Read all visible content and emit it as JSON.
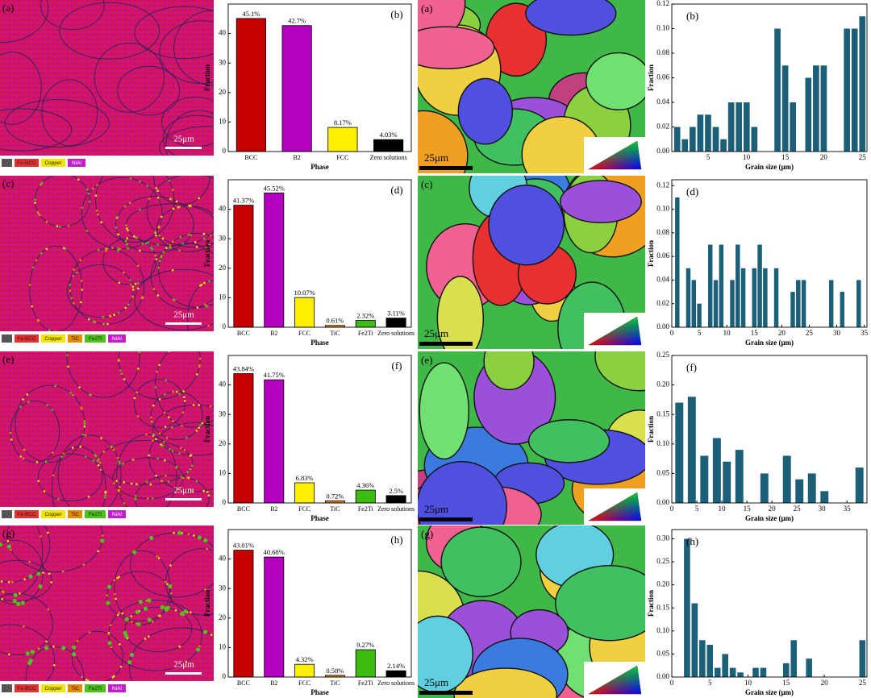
{
  "panels": [
    {
      "phase_label": "(a)",
      "phase_scale": "25μm",
      "legend": [
        {
          "name": "Fe-BCC",
          "color": "#e53030"
        },
        {
          "name": "Copper",
          "color": "#f2e600"
        },
        {
          "name": "NiAl",
          "color": "#c21fc9"
        }
      ],
      "ipf_label": "(a)",
      "ipf_scale": "25μm"
    },
    {
      "phase_label": "(c)",
      "phase_scale": "25μm",
      "legend": [
        {
          "name": "Fe-BCC",
          "color": "#e53030"
        },
        {
          "name": "Copper",
          "color": "#f2e600"
        },
        {
          "name": "TiC",
          "color": "#e58a00"
        },
        {
          "name": "Fe2Ti",
          "color": "#4cc21a"
        },
        {
          "name": "NiAl",
          "color": "#c21fc9"
        }
      ],
      "ipf_label": "(c)",
      "ipf_scale": "25μm"
    },
    {
      "phase_label": "(e)",
      "phase_scale": "25μm",
      "legend": [
        {
          "name": "Fe-BCC",
          "color": "#e53030"
        },
        {
          "name": "Copper",
          "color": "#f2e600"
        },
        {
          "name": "TiC",
          "color": "#e58a00"
        },
        {
          "name": "Fe2Ti",
          "color": "#4cc21a"
        },
        {
          "name": "NiAl",
          "color": "#c21fc9"
        }
      ],
      "ipf_label": "(e)",
      "ipf_scale": "25μm"
    },
    {
      "phase_label": "(g)",
      "phase_scale": "25μm",
      "legend": [
        {
          "name": "Fe-BCC",
          "color": "#e53030"
        },
        {
          "name": "Copper",
          "color": "#f2e600"
        },
        {
          "name": "TiC",
          "color": "#e58a00"
        },
        {
          "name": "Fe2Ti",
          "color": "#4cc21a"
        },
        {
          "name": "NiAl",
          "color": "#c21fc9"
        }
      ],
      "ipf_label": "(g)",
      "ipf_scale": "25μm"
    }
  ],
  "chart_data": [
    {
      "type": "bar",
      "panel_label": "(b)",
      "x_label": "Phase",
      "y_label": "Fraction",
      "categories": [
        "BCC",
        "B2",
        "FCC",
        "Zero solutions"
      ],
      "values": [
        45.1,
        42.7,
        8.17,
        4.03
      ],
      "value_labels": [
        "45.1%",
        "42.7%",
        "8.17%",
        "4.03%"
      ],
      "colors": [
        "#c40000",
        "#b400c0",
        "#fff000",
        "#000000"
      ],
      "ylim": [
        0,
        50
      ],
      "yticks": [
        0,
        10,
        20,
        30,
        40
      ]
    },
    {
      "type": "bar",
      "panel_label": "(b)",
      "x_label": "Grain size (μm)",
      "y_label": "Fraction",
      "color": "#1b5f78",
      "x": [
        1,
        2,
        3,
        4,
        5,
        6,
        7,
        8,
        9,
        10,
        11,
        14,
        15,
        16,
        18,
        19,
        20,
        23,
        24,
        25
      ],
      "values": [
        0.02,
        0.01,
        0.02,
        0.03,
        0.03,
        0.02,
        0.01,
        0.04,
        0.04,
        0.04,
        0.02,
        0.1,
        0.07,
        0.04,
        0.06,
        0.07,
        0.07,
        0.1,
        0.1,
        0.11
      ],
      "xlim": [
        0.3,
        25.6
      ],
      "xticks": [
        5,
        10,
        15,
        20,
        25
      ],
      "ylim": [
        0,
        0.12
      ],
      "yticks": [
        {
          "value": 0,
          "label": "0.00"
        },
        {
          "value": 0.02,
          "label": "0.02"
        },
        {
          "value": 0.04,
          "label": "0.04"
        },
        {
          "value": 0.06,
          "label": "0.06"
        },
        {
          "value": 0.08,
          "label": "0.08"
        },
        {
          "value": 0.1,
          "label": "0.10"
        },
        {
          "value": 0.12,
          "label": "0.12"
        }
      ]
    },
    {
      "type": "bar",
      "panel_label": "(d)",
      "x_label": "Phase",
      "y_label": "Fraction",
      "categories": [
        "BCC",
        "B2",
        "FCC",
        "TiC",
        "Fe2Ti",
        "Zero solutions"
      ],
      "values": [
        41.37,
        45.52,
        10.07,
        0.61,
        2.32,
        3.11
      ],
      "value_labels": [
        "41.37%",
        "45.52%",
        "10.07%",
        "0.61%",
        "2.32%",
        "3.11%"
      ],
      "colors": [
        "#c40000",
        "#b400c0",
        "#fff000",
        "#e58a00",
        "#3cbc10",
        "#000000"
      ],
      "ylim": [
        0,
        50
      ],
      "yticks": [
        0,
        10,
        20,
        30,
        40
      ]
    },
    {
      "type": "bar",
      "panel_label": "(d)",
      "x_label": "Grain size (μm)",
      "y_label": "Fraction",
      "color": "#1b5f78",
      "x": [
        1,
        3,
        4,
        5,
        7,
        8,
        9,
        11,
        12,
        13,
        15,
        16,
        17,
        19,
        22,
        23,
        24,
        29,
        31,
        34
      ],
      "values": [
        0.11,
        0.05,
        0.04,
        0.02,
        0.07,
        0.04,
        0.07,
        0.04,
        0.07,
        0.05,
        0.05,
        0.07,
        0.05,
        0.05,
        0.03,
        0.04,
        0.04,
        0.04,
        0.03,
        0.04
      ],
      "xlim": [
        0,
        35.5
      ],
      "xticks": [
        0,
        5,
        10,
        15,
        20,
        25,
        30,
        35
      ],
      "ylim": [
        0,
        0.125
      ],
      "yticks": [
        {
          "value": 0,
          "label": "0.00"
        },
        {
          "value": 0.02,
          "label": "0.02"
        },
        {
          "value": 0.04,
          "label": "0.04"
        },
        {
          "value": 0.06,
          "label": "0.06"
        },
        {
          "value": 0.08,
          "label": "0.08"
        },
        {
          "value": 0.1,
          "label": "0.10"
        },
        {
          "value": 0.12,
          "label": "0.12"
        }
      ]
    },
    {
      "type": "bar",
      "panel_label": "(f)",
      "x_label": "Phase",
      "y_label": "Fraction",
      "categories": [
        "BCC",
        "B2",
        "FCC",
        "TiC",
        "Fe2Ti",
        "Zero solutions"
      ],
      "values": [
        43.84,
        41.75,
        6.83,
        0.72,
        4.36,
        2.5
      ],
      "value_labels": [
        "43.84%",
        "41.75%",
        "6.83%",
        "0.72%",
        "4.36%",
        "2.5%"
      ],
      "colors": [
        "#c40000",
        "#b400c0",
        "#fff000",
        "#e58a00",
        "#3cbc10",
        "#000000"
      ],
      "ylim": [
        0,
        50
      ],
      "yticks": [
        0,
        10,
        20,
        30,
        40
      ]
    },
    {
      "type": "bar",
      "panel_label": "(f)",
      "x_label": "Grain size (μm)",
      "y_label": "Fraction",
      "color": "#1b5f78",
      "x": [
        1.5,
        4,
        6.5,
        9,
        11,
        13.5,
        18.5,
        23,
        25.5,
        28,
        30.5,
        37.5
      ],
      "values": [
        0.17,
        0.18,
        0.08,
        0.11,
        0.07,
        0.09,
        0.05,
        0.08,
        0.04,
        0.05,
        0.02,
        0.06
      ],
      "xlim": [
        0,
        39
      ],
      "xticks": [
        0,
        5,
        10,
        15,
        20,
        25,
        30,
        35
      ],
      "ylim": [
        0,
        0.25
      ],
      "yticks": [
        {
          "value": 0,
          "label": "0.00"
        },
        {
          "value": 0.05,
          "label": "0.05"
        },
        {
          "value": 0.1,
          "label": "0.10"
        },
        {
          "value": 0.15,
          "label": "0.15"
        },
        {
          "value": 0.2,
          "label": "0.20"
        },
        {
          "value": 0.25,
          "label": "0.25"
        }
      ]
    },
    {
      "type": "bar",
      "panel_label": "(h)",
      "x_label": "Phase",
      "y_label": "Fraction",
      "categories": [
        "BCC",
        "B2",
        "FCC",
        "TiC",
        "Fe2Ti",
        "Zero solutions"
      ],
      "values": [
        43.01,
        40.68,
        4.32,
        0.58,
        9.27,
        2.14
      ],
      "value_labels": [
        "43.01%",
        "40.68%",
        "4.32%",
        "0.58%",
        "9.27%",
        "2.14%"
      ],
      "colors": [
        "#c40000",
        "#b400c0",
        "#fff000",
        "#e58a00",
        "#3cbc10",
        "#000000"
      ],
      "ylim": [
        0,
        50
      ],
      "yticks": [
        0,
        10,
        20,
        30,
        40
      ]
    },
    {
      "type": "bar",
      "panel_label": "(h)",
      "x_label": "Grain size (μm)",
      "y_label": "Fraction",
      "color": "#1b5f78",
      "x": [
        2,
        3,
        4,
        5,
        6,
        7,
        8,
        9,
        11,
        12,
        15,
        16,
        18,
        25
      ],
      "values": [
        0.3,
        0.16,
        0.08,
        0.07,
        0.02,
        0.05,
        0.02,
        0.01,
        0.02,
        0.02,
        0.03,
        0.08,
        0.04,
        0.08
      ],
      "xlim": [
        0,
        25.6
      ],
      "xticks": [
        0,
        5,
        10,
        15,
        20,
        25
      ],
      "ylim": [
        0,
        0.32
      ],
      "yticks": [
        {
          "value": 0,
          "label": "0.00"
        },
        {
          "value": 0.05,
          "label": "0.05"
        },
        {
          "value": 0.1,
          "label": "0.10"
        },
        {
          "value": 0.15,
          "label": "0.15"
        },
        {
          "value": 0.2,
          "label": "0.20"
        },
        {
          "value": 0.25,
          "label": "0.25"
        },
        {
          "value": 0.3,
          "label": "0.30"
        }
      ]
    }
  ]
}
